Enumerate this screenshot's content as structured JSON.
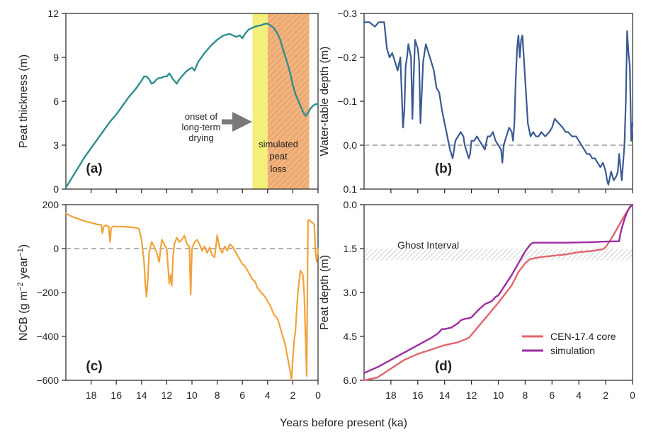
{
  "figure": {
    "xlabel": "Years before present (ka)",
    "colors": {
      "peat": "#2e8f8f",
      "water_table": "#3a5a92",
      "ncb": "#f2a23a",
      "core": "#e0656e",
      "simulation": "#9b2ea0",
      "zero_line": "#9a9a9a",
      "drying_yellow": "#f4ef7a",
      "loss_orange": "#eeaa70",
      "arrow": "#7a7a7a"
    }
  },
  "chart_data": [
    {
      "id": "a",
      "type": "line",
      "panel_tag": "(a)",
      "ylabel": "Peat thickness (m)",
      "xlim": [
        20,
        0
      ],
      "ylim": [
        0,
        12
      ],
      "xticks": [
        18,
        16,
        14,
        12,
        10,
        8,
        6,
        4,
        2,
        0
      ],
      "yticks": [
        0,
        3,
        6,
        9,
        12
      ],
      "x_ticklabels_shown": false,
      "annotations": {
        "drying_label": [
          "onset of",
          "long-term",
          "drying"
        ],
        "loss_label": [
          "simulated",
          "peat",
          "loss"
        ]
      },
      "shaded_regions": [
        {
          "name": "long-term drying",
          "from": 5.2,
          "to": 4.0
        },
        {
          "name": "simulated peat loss",
          "from": 4.0,
          "to": 0.7
        }
      ],
      "series": [
        {
          "x": [
            20,
            19.5,
            19,
            18.5,
            18,
            17.5,
            17,
            16.5,
            16,
            15.5,
            15,
            14.5,
            14,
            13.8,
            13.6,
            13.4,
            13.2,
            13,
            12.8,
            12.6,
            12.4,
            12.2,
            12,
            11.8,
            11.5,
            11.2,
            11,
            10.5,
            10.2,
            10,
            9.8,
            9.5,
            9,
            8.5,
            8,
            7.5,
            7,
            6.5,
            6.2,
            6,
            5.8,
            5.5,
            5,
            4.5,
            4.2,
            4,
            3.8,
            3.5,
            3.2,
            3,
            2.8,
            2.5,
            2.2,
            2,
            1.8,
            1.5,
            1.2,
            1,
            0.8,
            0.6,
            0.4,
            0.2,
            0
          ],
          "y": [
            0.1,
            0.8,
            1.5,
            2.2,
            2.8,
            3.4,
            4.0,
            4.6,
            5.1,
            5.7,
            6.3,
            6.8,
            7.4,
            7.7,
            7.7,
            7.5,
            7.2,
            7.3,
            7.5,
            7.6,
            7.6,
            7.7,
            7.7,
            7.9,
            7.5,
            7.2,
            7.5,
            8.0,
            8.2,
            8.3,
            8.1,
            8.7,
            9.3,
            9.8,
            10.2,
            10.5,
            10.6,
            10.4,
            10.5,
            10.3,
            10.6,
            10.9,
            11.1,
            11.2,
            11.3,
            11.3,
            11.2,
            11.0,
            10.6,
            10.2,
            9.6,
            8.8,
            7.9,
            7.1,
            6.5,
            5.9,
            5.3,
            5.0,
            5.2,
            5.5,
            5.7,
            5.8,
            5.8
          ]
        }
      ]
    },
    {
      "id": "b",
      "type": "line",
      "panel_tag": "(b)",
      "ylabel": "Water-table depth (m)",
      "xlim": [
        20,
        0
      ],
      "ylim": [
        -0.3,
        0.1
      ],
      "y_inverted": true,
      "xticks": [
        18,
        16,
        14,
        12,
        10,
        8,
        6,
        4,
        2,
        0
      ],
      "yticks": [
        -0.3,
        -0.2,
        -0.1,
        0.0,
        0.1
      ],
      "ytick_labels": [
        "−0.3",
        "−0.2",
        "−0.1",
        "0.0",
        "0.1"
      ],
      "x_ticklabels_shown": false,
      "zero_line": 0,
      "series": [
        {
          "x": [
            20,
            19.6,
            19.2,
            18.9,
            18.7,
            18.5,
            18.3,
            18.1,
            17.9,
            17.7,
            17.5,
            17.3,
            17.1,
            17.0,
            16.9,
            16.8,
            16.7,
            16.5,
            16.4,
            16.3,
            16.2,
            16.0,
            15.9,
            15.8,
            15.6,
            15.4,
            15.2,
            15.0,
            14.8,
            14.6,
            14.4,
            14.2,
            14.0,
            13.8,
            13.6,
            13.4,
            13.2,
            13.0,
            12.8,
            12.6,
            12.5,
            12.4,
            12.2,
            12.1,
            12.0,
            11.8,
            11.6,
            11.4,
            11.2,
            11.0,
            10.8,
            10.6,
            10.4,
            10.2,
            10.0,
            9.8,
            9.7,
            9.6,
            9.4,
            9.2,
            9.0,
            8.9,
            8.8,
            8.7,
            8.6,
            8.5,
            8.4,
            8.3,
            8.2,
            8.0,
            7.8,
            7.6,
            7.4,
            7.2,
            7.0,
            6.8,
            6.5,
            6.2,
            6.0,
            5.8,
            5.5,
            5.2,
            5.0,
            4.8,
            4.5,
            4.2,
            4.0,
            3.8,
            3.6,
            3.4,
            3.2,
            3.0,
            2.8,
            2.6,
            2.4,
            2.2,
            2.0,
            1.9,
            1.8,
            1.6,
            1.4,
            1.2,
            1.1,
            1.0,
            0.9,
            0.8,
            0.7,
            0.6,
            0.5,
            0.4,
            0.3,
            0.2,
            0.1,
            0
          ],
          "y": [
            -0.28,
            -0.28,
            -0.27,
            -0.28,
            -0.28,
            -0.28,
            -0.22,
            -0.2,
            -0.21,
            -0.19,
            -0.17,
            -0.2,
            -0.04,
            -0.08,
            -0.18,
            -0.2,
            -0.23,
            -0.2,
            -0.06,
            -0.16,
            -0.24,
            -0.22,
            -0.19,
            -0.05,
            -0.19,
            -0.23,
            -0.21,
            -0.19,
            -0.17,
            -0.13,
            -0.12,
            -0.08,
            -0.05,
            -0.02,
            0.01,
            0.03,
            -0.01,
            -0.02,
            -0.03,
            -0.02,
            0.0,
            0.01,
            0.03,
            0.02,
            -0.01,
            -0.01,
            -0.02,
            -0.01,
            0.0,
            0.01,
            -0.02,
            -0.02,
            -0.03,
            -0.01,
            0.0,
            0.01,
            0.04,
            0.0,
            -0.02,
            -0.04,
            -0.03,
            -0.01,
            -0.05,
            -0.15,
            -0.22,
            -0.25,
            -0.2,
            -0.24,
            -0.25,
            -0.15,
            -0.05,
            -0.02,
            -0.03,
            -0.02,
            -0.02,
            -0.03,
            -0.02,
            -0.03,
            -0.04,
            -0.06,
            -0.05,
            -0.04,
            -0.03,
            -0.03,
            -0.02,
            -0.02,
            -0.01,
            0.0,
            0.01,
            0.02,
            0.02,
            0.03,
            0.03,
            0.04,
            0.05,
            0.04,
            0.06,
            0.08,
            0.09,
            0.06,
            0.08,
            0.07,
            0.06,
            0.02,
            0.05,
            0.08,
            0.04,
            0.0,
            -0.1,
            -0.26,
            -0.21,
            -0.18,
            -0.01,
            -0.05
          ]
        }
      ]
    },
    {
      "id": "c",
      "type": "line",
      "panel_tag": "(c)",
      "ylabel": "NCB (g m−2 year−1)",
      "ylabel_parts": [
        "NCB (g m",
        "−2",
        " year",
        "−1",
        ")"
      ],
      "xlim": [
        20,
        0
      ],
      "ylim": [
        -600,
        200
      ],
      "xticks": [
        18,
        16,
        14,
        12,
        10,
        8,
        6,
        4,
        2,
        0
      ],
      "yticks": [
        -600,
        -400,
        -200,
        0,
        200
      ],
      "ytick_labels": [
        "−600",
        "−400",
        "−200",
        "0",
        "200"
      ],
      "x_ticklabels_shown": true,
      "zero_line": 0,
      "series": [
        {
          "x": [
            20,
            19.5,
            19,
            18.5,
            18,
            17.5,
            17.2,
            17.1,
            17.0,
            16.8,
            16.6,
            16.5,
            16.4,
            16.2,
            16.0,
            15.5,
            15.0,
            14.5,
            14.2,
            14.0,
            13.8,
            13.7,
            13.6,
            13.5,
            13.4,
            13.2,
            13.0,
            12.8,
            12.6,
            12.4,
            12.2,
            12.0,
            11.9,
            11.8,
            11.7,
            11.6,
            11.5,
            11.4,
            11.2,
            11.0,
            10.8,
            10.6,
            10.4,
            10.2,
            10.1,
            10.0,
            9.8,
            9.6,
            9.4,
            9.2,
            9.0,
            8.8,
            8.6,
            8.4,
            8.2,
            8.0,
            7.8,
            7.6,
            7.4,
            7.2,
            7.0,
            6.8,
            6.5,
            6.2,
            6.0,
            5.8,
            5.5,
            5.2,
            5.0,
            4.8,
            4.5,
            4.2,
            4.0,
            3.8,
            3.5,
            3.2,
            3.0,
            2.8,
            2.6,
            2.4,
            2.2,
            2.1,
            2.0,
            1.9,
            1.8,
            1.6,
            1.4,
            1.2,
            1.1,
            1.0,
            0.9,
            0.8,
            0.7,
            0.5,
            0.3,
            0.2,
            0.1,
            0
          ],
          "y": [
            160,
            145,
            135,
            125,
            118,
            110,
            108,
            70,
            100,
            106,
            100,
            30,
            95,
            102,
            100,
            100,
            98,
            95,
            90,
            40,
            -60,
            -160,
            -220,
            -140,
            -20,
            30,
            10,
            -20,
            -60,
            40,
            20,
            0,
            -80,
            -160,
            -120,
            -170,
            -40,
            20,
            50,
            30,
            40,
            60,
            20,
            10,
            -210,
            0,
            30,
            40,
            20,
            -10,
            10,
            -20,
            5,
            -30,
            -40,
            60,
            0,
            -20,
            10,
            -10,
            20,
            10,
            -20,
            -50,
            -70,
            -80,
            -110,
            -140,
            -150,
            -180,
            -200,
            -220,
            -240,
            -260,
            -300,
            -320,
            -360,
            -400,
            -440,
            -500,
            -560,
            -600,
            -500,
            -420,
            -380,
            -200,
            -100,
            -120,
            -200,
            -380,
            -580,
            130,
            130,
            120,
            110,
            -20,
            -60,
            0
          ]
        }
      ]
    },
    {
      "id": "d",
      "type": "line",
      "panel_tag": "(d)",
      "ylabel": "Peat depth (m)",
      "xlim": [
        20,
        0
      ],
      "ylim": [
        0,
        6
      ],
      "y_inverted": true,
      "xticks": [
        18,
        16,
        14,
        12,
        10,
        8,
        6,
        4,
        2,
        0
      ],
      "yticks": [
        0,
        1.5,
        3.0,
        4.5,
        6.0
      ],
      "ytick_labels": [
        "0.0",
        "1.5",
        "3.0",
        "4.5",
        "6.0"
      ],
      "x_ticklabels_shown": true,
      "annotations": {
        "ghost_label": "Ghost Interval"
      },
      "ghost_interval": [
        1.5,
        1.9
      ],
      "legend": {
        "placement": "bottom-right"
      },
      "series": [
        {
          "name": "CEN-17.4 core",
          "x": [
            20,
            19,
            18,
            17,
            16,
            15,
            14,
            13,
            12.2,
            11,
            10,
            9.5,
            9,
            8.5,
            8,
            7.6,
            7.4,
            7,
            6,
            5,
            4,
            3,
            2.2,
            2,
            1.5,
            1,
            0.5,
            0.2,
            0
          ],
          "y": [
            6.0,
            5.9,
            5.6,
            5.3,
            5.1,
            4.95,
            4.8,
            4.7,
            4.55,
            3.9,
            3.35,
            3.05,
            2.75,
            2.3,
            2.0,
            1.85,
            1.84,
            1.8,
            1.75,
            1.7,
            1.62,
            1.58,
            1.52,
            1.45,
            1.1,
            0.7,
            0.3,
            0.1,
            0.0
          ]
        },
        {
          "name": "simulation",
          "x": [
            20,
            19,
            18,
            17,
            16,
            15,
            14.5,
            14.2,
            14,
            13.5,
            13,
            12.8,
            12.5,
            12.2,
            12,
            11.5,
            11,
            10.5,
            10.2,
            10,
            9.5,
            9,
            8.5,
            8,
            7.6,
            7.4,
            7.2,
            7,
            6,
            5,
            4,
            3,
            2,
            1,
            0.9,
            0.8,
            0.6,
            0.4,
            0.2,
            0
          ],
          "y": [
            5.75,
            5.55,
            5.3,
            5.05,
            4.8,
            4.55,
            4.4,
            4.25,
            4.25,
            4.2,
            4.05,
            3.95,
            3.9,
            3.88,
            3.85,
            3.6,
            3.4,
            3.3,
            3.15,
            3.1,
            2.75,
            2.4,
            2.0,
            1.6,
            1.35,
            1.3,
            1.3,
            1.3,
            1.3,
            1.3,
            1.29,
            1.28,
            1.26,
            1.25,
            1.0,
            0.8,
            0.5,
            0.25,
            0.08,
            0.0
          ]
        }
      ]
    }
  ]
}
